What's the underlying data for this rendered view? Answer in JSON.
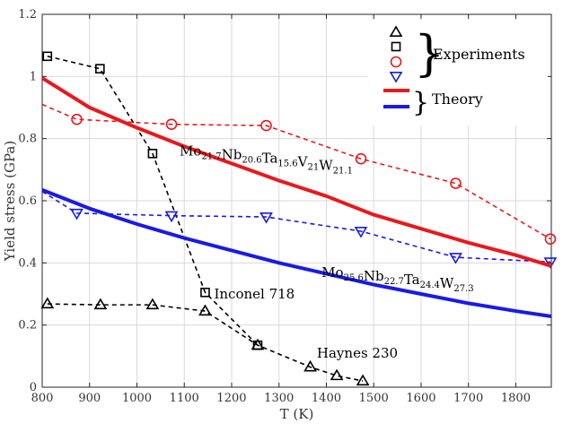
{
  "chart_data": {
    "type": "line",
    "xlabel": "T (K)",
    "ylabel": "Yield stress (GPa)",
    "xlim": [
      800,
      1875
    ],
    "ylim": [
      0,
      1.2
    ],
    "xticks": [
      800,
      900,
      1000,
      1100,
      1200,
      1300,
      1400,
      1500,
      1600,
      1700,
      1800
    ],
    "yticks": [
      0,
      0.2,
      0.4,
      0.6,
      0.8,
      1,
      1.2
    ],
    "grid": true,
    "legend_placement": "top-right",
    "legend_groups": {
      "experiments": "Experiments",
      "theory": "Theory"
    },
    "series": [
      {
        "id": "haynes",
        "style": "experiment",
        "marker": "triangle-up",
        "color": "#000000",
        "x": [
          811,
          923,
          1033,
          1144,
          1255,
          1366,
          1422,
          1477
        ],
        "y": [
          0.268,
          0.265,
          0.265,
          0.245,
          0.135,
          0.065,
          0.037,
          0.02
        ]
      },
      {
        "id": "inconel",
        "style": "experiment",
        "marker": "square",
        "color": "#000000",
        "x": [
          811,
          922,
          1033,
          1144,
          1255
        ],
        "y": [
          1.065,
          1.025,
          0.752,
          0.305,
          0.135
        ]
      },
      {
        "id": "hea6_exp",
        "style": "experiment",
        "marker": "circle",
        "color": "#e8191e",
        "x": [
          800,
          873,
          1073,
          1273,
          1473,
          1673,
          1873
        ],
        "y": [
          0.91,
          0.862,
          0.846,
          0.842,
          0.735,
          0.656,
          0.477
        ],
        "markers_from": 1
      },
      {
        "id": "hea4_exp",
        "style": "experiment",
        "marker": "triangle-down",
        "color": "#1a1ae6",
        "x": [
          800,
          873,
          1073,
          1273,
          1473,
          1673,
          1873
        ],
        "y": [
          0.63,
          0.56,
          0.552,
          0.548,
          0.502,
          0.418,
          0.403
        ],
        "markers_from": 1
      },
      {
        "id": "hea6_theory",
        "style": "theory",
        "color": "#e8191e",
        "x": [
          800,
          900,
          1000,
          1100,
          1200,
          1300,
          1400,
          1500,
          1600,
          1700,
          1800,
          1875
        ],
        "y": [
          0.995,
          0.9,
          0.835,
          0.775,
          0.72,
          0.665,
          0.615,
          0.555,
          0.51,
          0.465,
          0.425,
          0.39
        ]
      },
      {
        "id": "hea4_theory",
        "style": "theory",
        "color": "#1a1ae6",
        "x": [
          800,
          900,
          1000,
          1100,
          1200,
          1300,
          1400,
          1500,
          1600,
          1700,
          1800,
          1875
        ],
        "y": [
          0.635,
          0.575,
          0.525,
          0.48,
          0.44,
          0.4,
          0.365,
          0.33,
          0.3,
          0.27,
          0.245,
          0.228
        ]
      }
    ],
    "annotations": [
      {
        "id": "inconel",
        "text": "Inconel 718",
        "x": 1163,
        "y": 0.285,
        "color": "#000000"
      },
      {
        "id": "haynes",
        "text": "Haynes 230",
        "x": 1380,
        "y": 0.095,
        "color": "#000000"
      },
      {
        "id": "hea6",
        "color": "#e8191e",
        "x": 1090,
        "y": 0.745,
        "parts": [
          {
            "base": "Mo",
            "sub": "21.7"
          },
          {
            "base": "Nb",
            "sub": "20.6"
          },
          {
            "base": "Ta",
            "sub": "15.6"
          },
          {
            "base": "V",
            "sub": "21"
          },
          {
            "base": "W",
            "sub": "21.1"
          }
        ]
      },
      {
        "id": "hea4",
        "color": "#1a1ae6",
        "x": 1390,
        "y": 0.355,
        "parts": [
          {
            "base": "Mo",
            "sub": "25.6"
          },
          {
            "base": "Nb",
            "sub": "22.7"
          },
          {
            "base": "Ta",
            "sub": "24.4"
          },
          {
            "base": "W",
            "sub": "27.3"
          }
        ]
      }
    ]
  }
}
